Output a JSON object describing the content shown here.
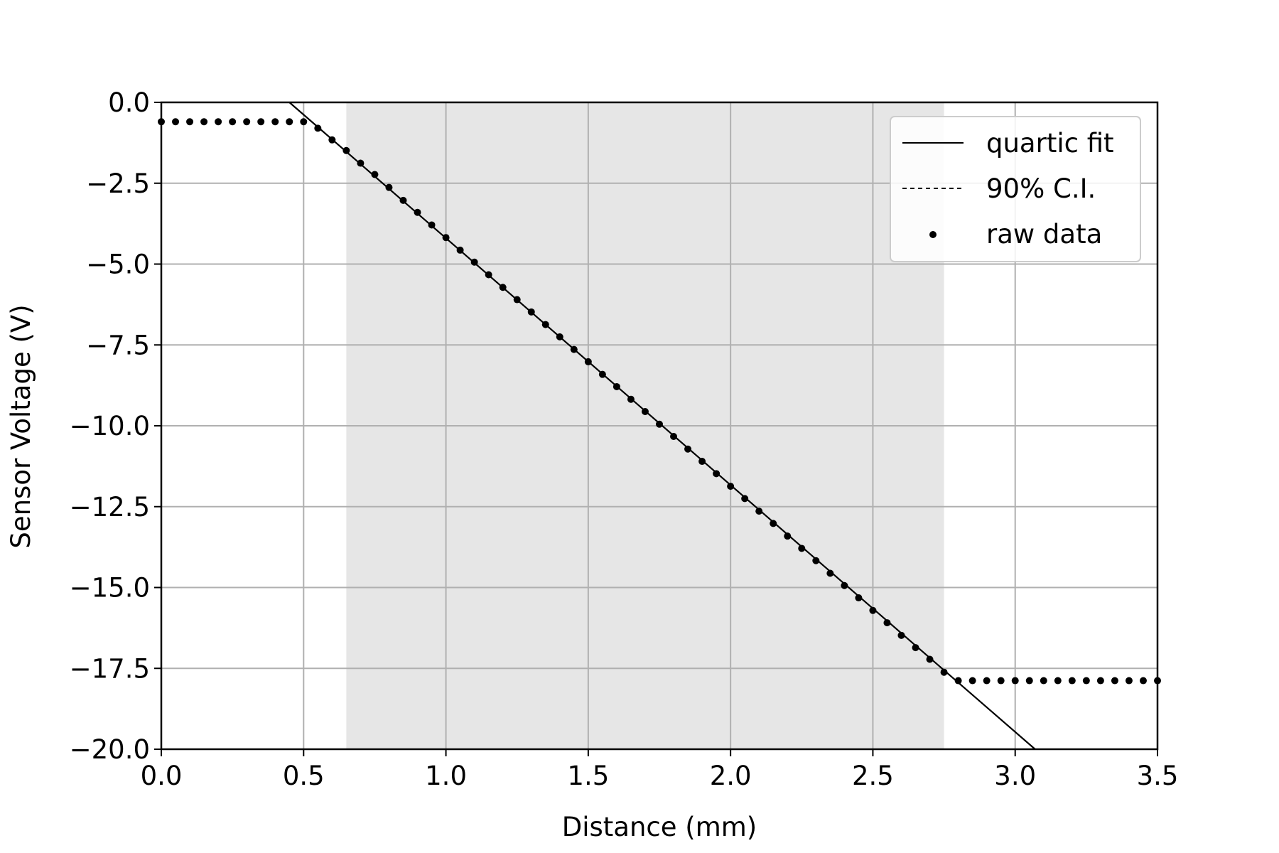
{
  "chart_data": {
    "type": "line",
    "xlabel": "Distance (mm)",
    "ylabel": "Sensor Voltage (V)",
    "xlim": [
      0.0,
      3.5
    ],
    "ylim": [
      -20.0,
      0.0
    ],
    "xticks": [
      "0.0",
      "0.5",
      "1.0",
      "1.5",
      "2.0",
      "2.5",
      "3.0",
      "3.5"
    ],
    "yticks": [
      "0.0",
      "−2.5",
      "−5.0",
      "−7.5",
      "−10.0",
      "−12.5",
      "−15.0",
      "−17.5",
      "−20.0"
    ],
    "grid": true,
    "legend_position": "top-right",
    "fit_range": [
      0.65,
      2.75
    ],
    "series": [
      {
        "name": "quartic fit",
        "style": "solid",
        "color": "#000000",
        "x": [
          0.45,
          3.07
        ],
        "y": [
          0.0,
          -20.0
        ]
      },
      {
        "name": "90% C.I.",
        "style": "dashed",
        "color": "#000000",
        "x": [],
        "y": []
      },
      {
        "name": "raw data",
        "style": "markers",
        "color": "#000000",
        "x": [
          0.0,
          0.05,
          0.1,
          0.15,
          0.2,
          0.25,
          0.3,
          0.35,
          0.4,
          0.45,
          0.5,
          0.55,
          0.6,
          0.65,
          0.7,
          0.75,
          0.8,
          0.85,
          0.9,
          0.95,
          1.0,
          1.05,
          1.1,
          1.15,
          1.2,
          1.25,
          1.3,
          1.35,
          1.4,
          1.45,
          1.5,
          1.55,
          1.6,
          1.65,
          1.7,
          1.75,
          1.8,
          1.85,
          1.9,
          1.95,
          2.0,
          2.05,
          2.1,
          2.15,
          2.2,
          2.25,
          2.3,
          2.35,
          2.4,
          2.45,
          2.5,
          2.55,
          2.6,
          2.65,
          2.7,
          2.75,
          2.8,
          2.85,
          2.9,
          2.95,
          3.0,
          3.05,
          3.1,
          3.15,
          3.2,
          3.25,
          3.3,
          3.35,
          3.4,
          3.45,
          3.5
        ],
        "y": [
          -0.6,
          -0.6,
          -0.6,
          -0.6,
          -0.6,
          -0.6,
          -0.6,
          -0.6,
          -0.6,
          -0.6,
          -0.6,
          -0.8,
          -1.16,
          -1.49,
          -1.88,
          -2.23,
          -2.63,
          -3.03,
          -3.4,
          -3.79,
          -4.18,
          -4.57,
          -4.94,
          -5.33,
          -5.72,
          -6.1,
          -6.48,
          -6.87,
          -7.25,
          -7.64,
          -8.02,
          -8.41,
          -8.79,
          -9.18,
          -9.56,
          -9.95,
          -10.33,
          -10.72,
          -11.1,
          -11.48,
          -11.87,
          -12.25,
          -12.64,
          -13.02,
          -13.41,
          -13.79,
          -14.17,
          -14.56,
          -14.94,
          -15.32,
          -15.71,
          -16.09,
          -16.48,
          -16.86,
          -17.22,
          -17.62,
          -17.88,
          -17.88,
          -17.88,
          -17.88,
          -17.88,
          -17.88,
          -17.88,
          -17.88,
          -17.88,
          -17.88,
          -17.88,
          -17.88,
          -17.88,
          -17.88,
          -17.88
        ]
      }
    ]
  }
}
